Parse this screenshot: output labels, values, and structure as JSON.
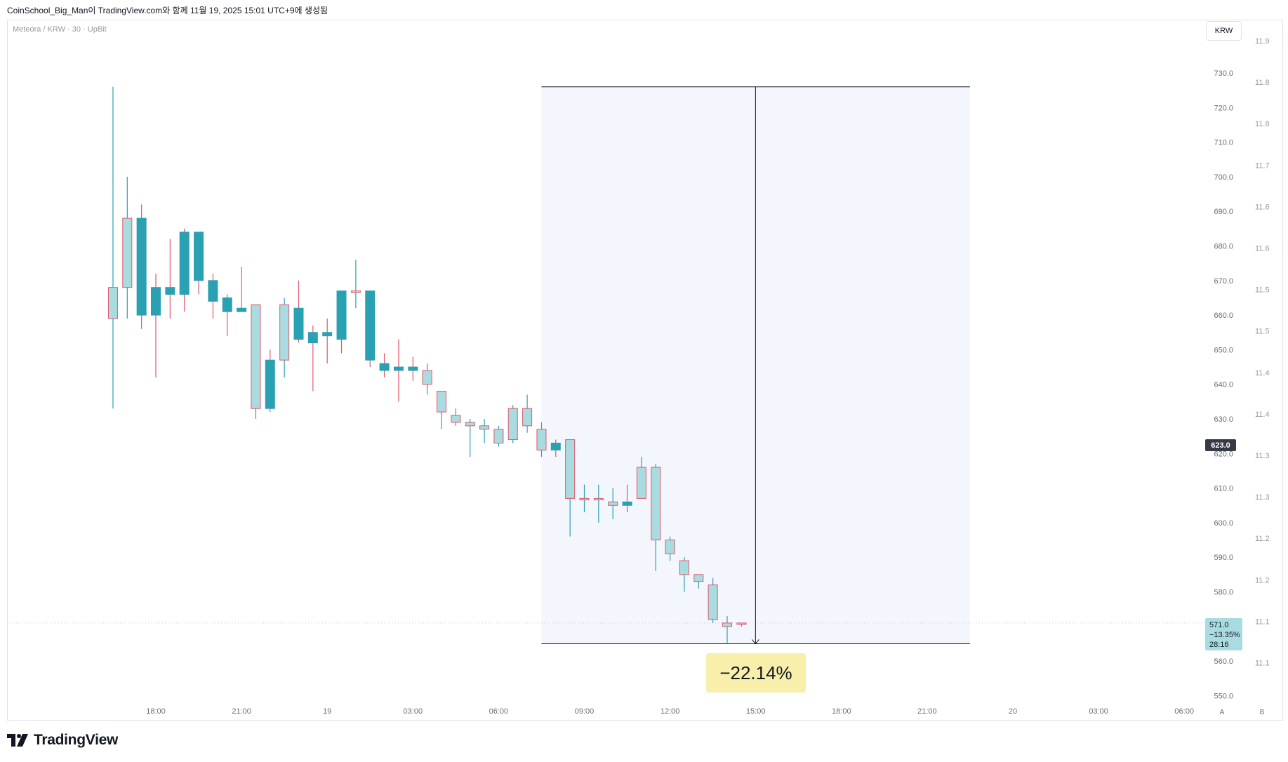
{
  "header": {
    "caption": "CoinSchool_Big_Man이 TradingView.com와 함께 11월 19, 2025 15:01 UTC+9에 생성됨"
  },
  "symbol": {
    "label": "Meteora / KRW · 30 · UpBit",
    "currency_badge": "KRW"
  },
  "colors": {
    "up_fill": "#a9dce0",
    "down_fill": "#2aa1b3",
    "down_wick": "#e0586a",
    "measure_bg": "#f4f6fd",
    "pct_bg": "#f7efaa"
  },
  "price_tag": "623.0",
  "last_price": {
    "price": "571.0",
    "change": "−13.35%",
    "countdown": "28:16"
  },
  "measure": {
    "percent_label": "−22.14%",
    "start_time": "07:30",
    "end_time": "22:30",
    "top_price": "726.0",
    "bottom_price": "565.0"
  },
  "logo_text": "TradingView",
  "corner_buttons": [
    "A",
    "B"
  ],
  "chart_data": {
    "type": "candlestick",
    "title": "Meteora / KRW · 30 · UpBit",
    "ylim": [
      548,
      740
    ],
    "y_ticks": [
      "730.0",
      "720.0",
      "710.0",
      "700.0",
      "690.0",
      "680.0",
      "670.0",
      "660.0",
      "650.0",
      "640.0",
      "630.0",
      "620.0",
      "610.0",
      "600.0",
      "590.0",
      "580.0",
      "560.0",
      "550.0"
    ],
    "y_ticks_secondary": [
      "11.9",
      "11.8",
      "11.8",
      "11.7",
      "11.6",
      "11.6",
      "11.5",
      "11.5",
      "11.4",
      "11.4",
      "11.3",
      "11.3",
      "11.2",
      "11.2",
      "11.1",
      "11.1"
    ],
    "x_ticks": [
      "18:00",
      "21:00",
      "19",
      "03:00",
      "06:00",
      "09:00",
      "12:00",
      "15:00",
      "18:00",
      "21:00",
      "20",
      "03:00",
      "06:00"
    ],
    "candles": [
      {
        "t": "16:30",
        "o": 659,
        "h": 726,
        "l": 633,
        "c": 668
      },
      {
        "t": "17:00",
        "o": 668,
        "h": 700,
        "l": 659,
        "c": 688
      },
      {
        "t": "17:30",
        "o": 688,
        "h": 692,
        "l": 656,
        "c": 660
      },
      {
        "t": "18:00",
        "o": 668,
        "h": 672,
        "l": 642,
        "c": 660
      },
      {
        "t": "18:30",
        "o": 668,
        "h": 682,
        "l": 659,
        "c": 666
      },
      {
        "t": "19:00",
        "o": 684,
        "h": 685,
        "l": 661,
        "c": 666
      },
      {
        "t": "19:30",
        "o": 684,
        "h": 684,
        "l": 666,
        "c": 670
      },
      {
        "t": "20:00",
        "o": 670,
        "h": 672,
        "l": 659,
        "c": 664
      },
      {
        "t": "20:30",
        "o": 665,
        "h": 666,
        "l": 654,
        "c": 661
      },
      {
        "t": "21:00",
        "o": 662,
        "h": 674,
        "l": 661,
        "c": 661
      },
      {
        "t": "21:30",
        "o": 633,
        "h": 663,
        "l": 630,
        "c": 663
      },
      {
        "t": "22:00",
        "o": 647,
        "h": 650,
        "l": 632,
        "c": 633
      },
      {
        "t": "22:30",
        "o": 647,
        "h": 665,
        "l": 642,
        "c": 663
      },
      {
        "t": "23:00",
        "o": 662,
        "h": 670,
        "l": 652,
        "c": 653
      },
      {
        "t": "23:30",
        "o": 655,
        "h": 657,
        "l": 638,
        "c": 652
      },
      {
        "t": "00:00",
        "o": 655,
        "h": 659,
        "l": 646,
        "c": 654
      },
      {
        "t": "00:30",
        "o": 667,
        "h": 667,
        "l": 649,
        "c": 653
      },
      {
        "t": "01:00",
        "o": 667,
        "h": 676,
        "l": 662,
        "c": 667
      },
      {
        "t": "01:30",
        "o": 667,
        "h": 667,
        "l": 645,
        "c": 647
      },
      {
        "t": "02:00",
        "o": 646,
        "h": 649,
        "l": 642,
        "c": 644
      },
      {
        "t": "02:30",
        "o": 645,
        "h": 653,
        "l": 635,
        "c": 644
      },
      {
        "t": "03:00",
        "o": 645,
        "h": 648,
        "l": 641,
        "c": 644
      },
      {
        "t": "03:30",
        "o": 640,
        "h": 646,
        "l": 637,
        "c": 644
      },
      {
        "t": "04:00",
        "o": 632,
        "h": 638,
        "l": 627,
        "c": 638
      },
      {
        "t": "04:30",
        "o": 629,
        "h": 633,
        "l": 628,
        "c": 631
      },
      {
        "t": "05:00",
        "o": 628,
        "h": 630,
        "l": 619,
        "c": 629
      },
      {
        "t": "05:30",
        "o": 627,
        "h": 630,
        "l": 623,
        "c": 628
      },
      {
        "t": "06:00",
        "o": 623,
        "h": 628,
        "l": 622,
        "c": 627
      },
      {
        "t": "06:30",
        "o": 624,
        "h": 634,
        "l": 623,
        "c": 633
      },
      {
        "t": "07:00",
        "o": 628,
        "h": 637,
        "l": 626,
        "c": 633
      },
      {
        "t": "07:30",
        "o": 621,
        "h": 629,
        "l": 619,
        "c": 627
      },
      {
        "t": "08:00",
        "o": 623,
        "h": 624,
        "l": 619,
        "c": 621
      },
      {
        "t": "08:30",
        "o": 607,
        "h": 624,
        "l": 596,
        "c": 624
      },
      {
        "t": "09:00",
        "o": 607,
        "h": 611,
        "l": 603,
        "c": 607
      },
      {
        "t": "09:30",
        "o": 607,
        "h": 611,
        "l": 600,
        "c": 607
      },
      {
        "t": "10:00",
        "o": 605,
        "h": 610,
        "l": 601,
        "c": 606
      },
      {
        "t": "10:30",
        "o": 606,
        "h": 611,
        "l": 603,
        "c": 605
      },
      {
        "t": "11:00",
        "o": 607,
        "h": 619,
        "l": 607,
        "c": 616
      },
      {
        "t": "11:30",
        "o": 595,
        "h": 617,
        "l": 586,
        "c": 616
      },
      {
        "t": "12:00",
        "o": 591,
        "h": 596,
        "l": 589,
        "c": 595
      },
      {
        "t": "12:30",
        "o": 585,
        "h": 590,
        "l": 580,
        "c": 589
      },
      {
        "t": "13:00",
        "o": 583,
        "h": 585,
        "l": 581,
        "c": 585
      },
      {
        "t": "13:30",
        "o": 572,
        "h": 584,
        "l": 571,
        "c": 582
      },
      {
        "t": "14:00",
        "o": 570,
        "h": 573,
        "l": 565,
        "c": 571
      },
      {
        "t": "14:30",
        "o": 571,
        "h": 571,
        "l": 570,
        "c": 571
      }
    ]
  }
}
